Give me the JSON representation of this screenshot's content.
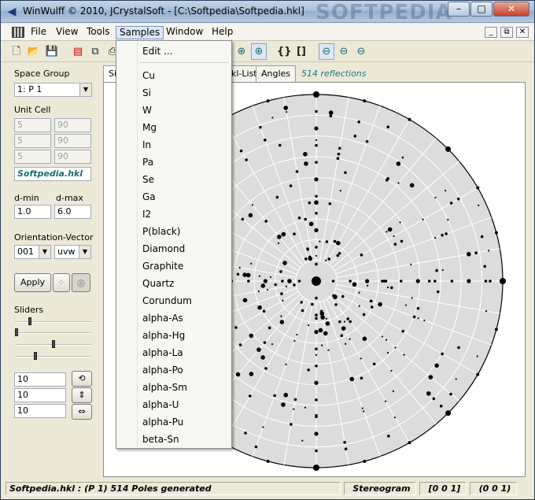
{
  "window": {
    "title": "WinWulff © 2010, JCrystalSoft - [C:\\Softpedia\\Softpedia.hkl]",
    "watermark": "SOFTPEDIA",
    "minimize": "–",
    "maximize": "□",
    "close": "✕"
  },
  "menubar": {
    "items": [
      "File",
      "View",
      "Tools",
      "Samples",
      "Window",
      "Help"
    ],
    "mdi_buttons": [
      "_",
      "⧉",
      "✕"
    ]
  },
  "toolbar": {
    "icons": [
      "new-file-icon",
      "open-folder-icon",
      "save-icon",
      "pdf-icon",
      "copy-icon",
      "print-icon",
      "globe-icon",
      "globe-alt-icon",
      "index-braces-icon",
      "index-brackets-icon",
      "hemisphere-upper-icon",
      "hemisphere-equator-icon",
      "hemisphere-lower-icon"
    ]
  },
  "left_panel": {
    "space_group_label": "Space Group",
    "space_group_value": "1: P 1",
    "unit_cell_label": "Unit Cell",
    "unit_cell_rows": [
      [
        "5",
        "90"
      ],
      [
        "5",
        "90"
      ],
      [
        "5",
        "90"
      ]
    ],
    "file_name": "Softpedia.hkl",
    "dmin_label": "d-min",
    "dmax_label": "d-max",
    "dmin_value": "1.0",
    "dmax_value": "6.0",
    "orientation_label": "Orientation-Vector",
    "orientation_value": "001",
    "orientation_type": "uvw",
    "apply_label": "Apply",
    "sliders_label": "Sliders",
    "slider_levels": [
      0.18,
      0.0,
      0.5,
      0.25
    ],
    "step_values": [
      "10",
      "10",
      "10"
    ]
  },
  "tabs": {
    "items": [
      "Si",
      "kl-List",
      "Angles"
    ],
    "reflections": "514 reflections"
  },
  "samples_menu": {
    "items": [
      "Edit ...",
      "Cu",
      "Si",
      "W",
      "Mg",
      "In",
      "Pa",
      "Se",
      "Ga",
      "I2",
      "P(black)",
      "Diamond",
      "Graphite",
      "Quartz",
      "Corundum",
      "alpha-As",
      "alpha-Hg",
      "alpha-La",
      "alpha-Po",
      "alpha-Sm",
      "alpha-U",
      "alpha-Pu",
      "beta-Sn"
    ]
  },
  "statusbar": {
    "info": "Softpedia.hkl :  (P 1)  514 Poles generated",
    "projection": "Stereogram",
    "direction": "[0 0 1]",
    "plane": "(0 0 1)"
  },
  "colors": {
    "net_fill": "#dcdcdc",
    "net_lines": "#ffffff",
    "pole": "#000000",
    "accent_text": "#1b7a7a"
  }
}
